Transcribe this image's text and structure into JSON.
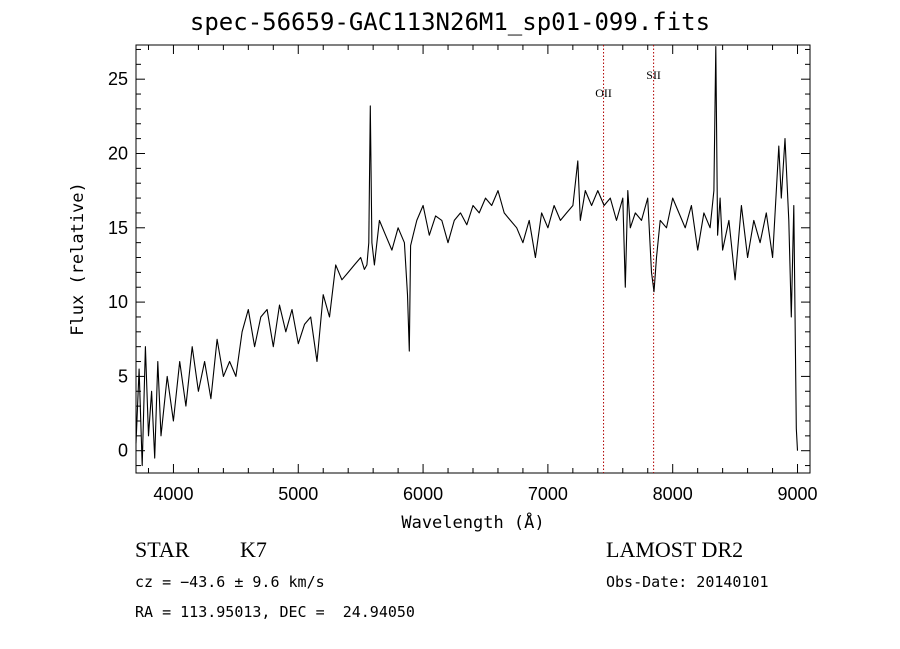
{
  "chart_data": {
    "type": "line",
    "title": "spec-56659-GAC113N26M1_sp01-099.fits",
    "xlabel": "Wavelength (Å)",
    "ylabel": "Flux (relative)",
    "xlim": [
      3700,
      9100
    ],
    "ylim": [
      -1.5,
      27.3
    ],
    "xticks": [
      "4000",
      "5000",
      "6000",
      "7000",
      "8000",
      "9000"
    ],
    "yticks": [
      "0",
      "5",
      "10",
      "15",
      "20",
      "25"
    ],
    "xtick_values": [
      4000,
      5000,
      6000,
      7000,
      8000,
      9000
    ],
    "ytick_values": [
      0,
      5,
      10,
      15,
      20,
      25
    ],
    "grid": false,
    "line_color": "#000000",
    "marker_color": "#b00000",
    "line_markers": [
      {
        "label": "OII",
        "x": 7446
      },
      {
        "label": "SII",
        "x": 7847
      }
    ],
    "series": [
      {
        "x": [
          3700,
          3725,
          3750,
          3775,
          3800,
          3825,
          3850,
          3875,
          3900,
          3950,
          4000,
          4050,
          4100,
          4150,
          4200,
          4250,
          4300,
          4350,
          4400,
          4450,
          4500,
          4550,
          4600,
          4650,
          4700,
          4750,
          4800,
          4850,
          4900,
          4950,
          5000,
          5050,
          5100,
          5150,
          5200,
          5250,
          5300,
          5350,
          5400,
          5450,
          5500,
          5530,
          5550,
          5565,
          5577,
          5590,
          5610,
          5650,
          5700,
          5750,
          5800,
          5850,
          5875,
          5890,
          5900,
          5920,
          5950,
          6000,
          6050,
          6100,
          6150,
          6200,
          6250,
          6300,
          6350,
          6400,
          6450,
          6500,
          6550,
          6600,
          6650,
          6700,
          6750,
          6800,
          6850,
          6900,
          6950,
          7000,
          7050,
          7100,
          7150,
          7200,
          7240,
          7260,
          7300,
          7350,
          7400,
          7450,
          7500,
          7550,
          7600,
          7620,
          7640,
          7660,
          7700,
          7750,
          7800,
          7830,
          7850,
          7870,
          7900,
          7950,
          8000,
          8050,
          8100,
          8150,
          8200,
          8250,
          8300,
          8330,
          8345,
          8360,
          8380,
          8400,
          8450,
          8500,
          8550,
          8600,
          8650,
          8700,
          8750,
          8800,
          8850,
          8870,
          8900,
          8930,
          8950,
          8970,
          8990,
          9000
        ],
        "y": [
          0.5,
          5.5,
          -1.0,
          7.0,
          1.0,
          4.0,
          -0.5,
          6.0,
          1.0,
          5.0,
          2.0,
          6.0,
          3.0,
          7.0,
          4.0,
          6.0,
          3.5,
          7.5,
          5.0,
          6.0,
          5.0,
          8.0,
          9.5,
          7.0,
          9.0,
          9.5,
          7.0,
          9.8,
          8.0,
          9.5,
          7.2,
          8.5,
          9.0,
          6.0,
          10.5,
          9.0,
          12.5,
          11.5,
          12.0,
          12.5,
          13.0,
          12.2,
          12.5,
          14.0,
          23.2,
          14.0,
          12.5,
          15.5,
          14.5,
          13.5,
          15.0,
          14.0,
          10.5,
          6.7,
          13.8,
          14.5,
          15.5,
          16.5,
          14.5,
          15.8,
          15.5,
          14.0,
          15.5,
          16.0,
          15.2,
          16.5,
          16.0,
          17.0,
          16.5,
          17.5,
          16.0,
          15.5,
          15.0,
          14.0,
          15.5,
          13.0,
          16.0,
          15.0,
          16.5,
          15.5,
          16.0,
          16.5,
          19.5,
          15.5,
          17.5,
          16.5,
          17.5,
          16.5,
          17.0,
          15.5,
          17.0,
          11.0,
          17.5,
          15.0,
          16.0,
          15.5,
          17.0,
          12.0,
          10.7,
          13.0,
          15.5,
          15.0,
          17.0,
          16.0,
          15.0,
          16.5,
          13.5,
          16.0,
          15.0,
          17.5,
          27.2,
          14.5,
          17.0,
          13.5,
          15.5,
          11.5,
          16.5,
          13.0,
          15.5,
          14.0,
          16.0,
          13.0,
          20.5,
          17.0,
          21.0,
          15.5,
          9.0,
          16.5,
          1.5,
          0.0
        ]
      }
    ]
  },
  "info": {
    "object_class": "STAR",
    "subclass": "K7",
    "survey": "LAMOST DR2",
    "cz": "cz = −43.6 ± 9.6 km/s",
    "obs_date": "Obs-Date: 20140101",
    "radec": "RA = 113.95013, DEC =  24.94050"
  }
}
